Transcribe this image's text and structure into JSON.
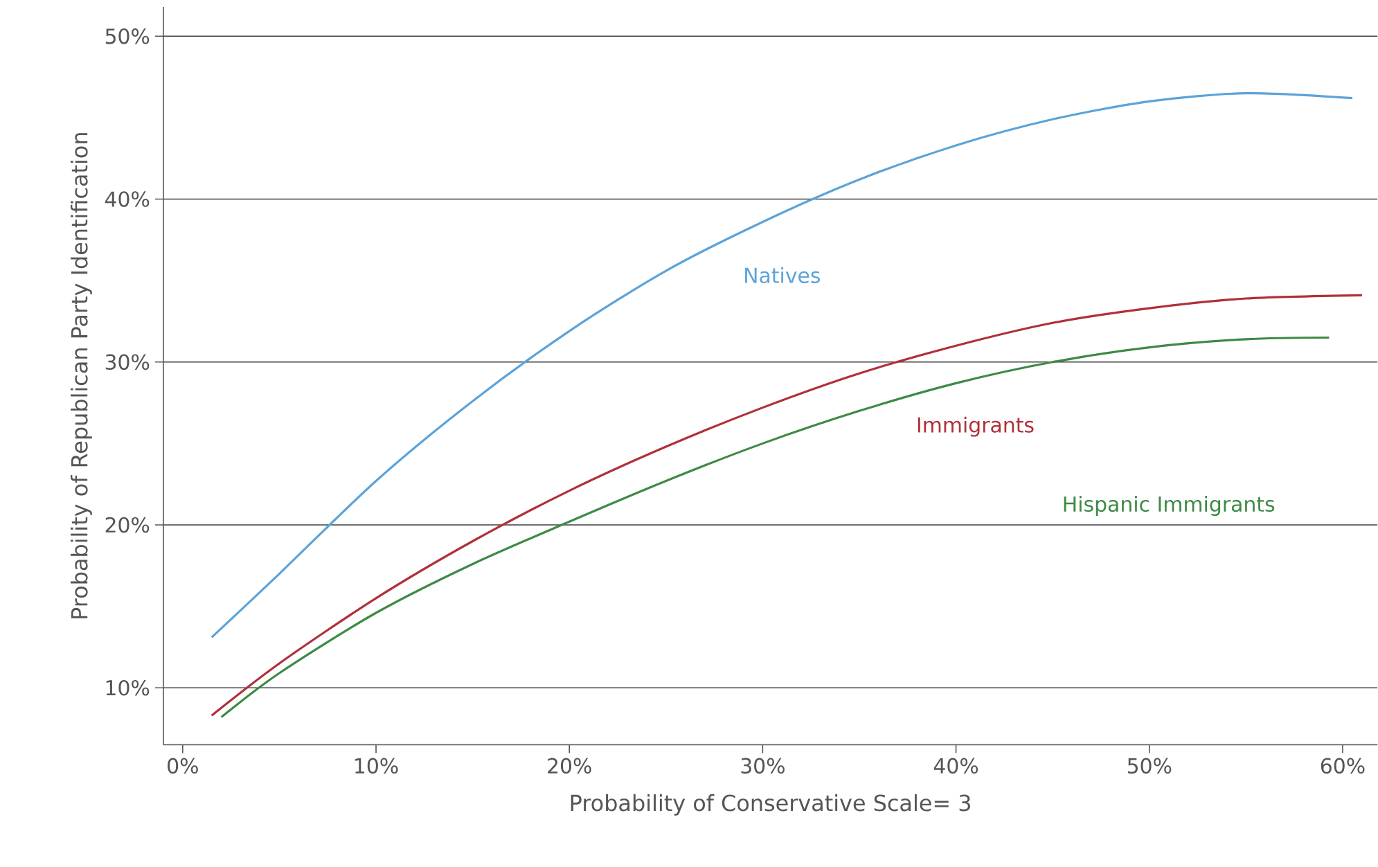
{
  "chart_data": {
    "type": "line",
    "xlabel": "Probability of Conservative Scale= 3",
    "ylabel": "Probability of Republican Party Identification",
    "xlim": [
      -1,
      61.8
    ],
    "ylim": [
      6.5,
      51.8
    ],
    "xticks": [
      {
        "value": 0,
        "label": "0%"
      },
      {
        "value": 10,
        "label": "10%"
      },
      {
        "value": 20,
        "label": "20%"
      },
      {
        "value": 30,
        "label": "30%"
      },
      {
        "value": 40,
        "label": "40%"
      },
      {
        "value": 50,
        "label": "50%"
      },
      {
        "value": 60,
        "label": "60%"
      }
    ],
    "yticks": [
      {
        "value": 10,
        "label": "10%"
      },
      {
        "value": 20,
        "label": "20%"
      },
      {
        "value": 30,
        "label": "30%"
      },
      {
        "value": 40,
        "label": "40%"
      },
      {
        "value": 50,
        "label": "50%"
      }
    ],
    "grid": "y",
    "legend": false,
    "marker": "none",
    "line_style": "solid",
    "series": [
      {
        "name": "Natives",
        "color": "#5ba3d9",
        "x": [
          1.5,
          5,
          10,
          15,
          20,
          25,
          30,
          35,
          40,
          45,
          50,
          55,
          60.5
        ],
        "values": [
          13.1,
          17.0,
          22.7,
          27.6,
          31.9,
          35.6,
          38.6,
          41.2,
          43.3,
          44.9,
          46.0,
          46.5,
          46.2
        ]
      },
      {
        "name": "Immigrants",
        "color": "#b0303a",
        "x": [
          1.5,
          5,
          10,
          15,
          20,
          25,
          30,
          35,
          40,
          45,
          50,
          55,
          61
        ],
        "values": [
          8.3,
          11.5,
          15.5,
          19.0,
          22.1,
          24.8,
          27.2,
          29.3,
          31.0,
          32.4,
          33.3,
          33.9,
          34.1
        ]
      },
      {
        "name": "Hispanic Immigrants",
        "color": "#3d8a45",
        "x": [
          2,
          5,
          10,
          15,
          20,
          25,
          30,
          35,
          40,
          45,
          50,
          55,
          59.3
        ],
        "values": [
          8.2,
          10.9,
          14.6,
          17.6,
          20.2,
          22.7,
          25.0,
          27.0,
          28.7,
          30.0,
          30.9,
          31.4,
          31.5
        ]
      }
    ]
  }
}
